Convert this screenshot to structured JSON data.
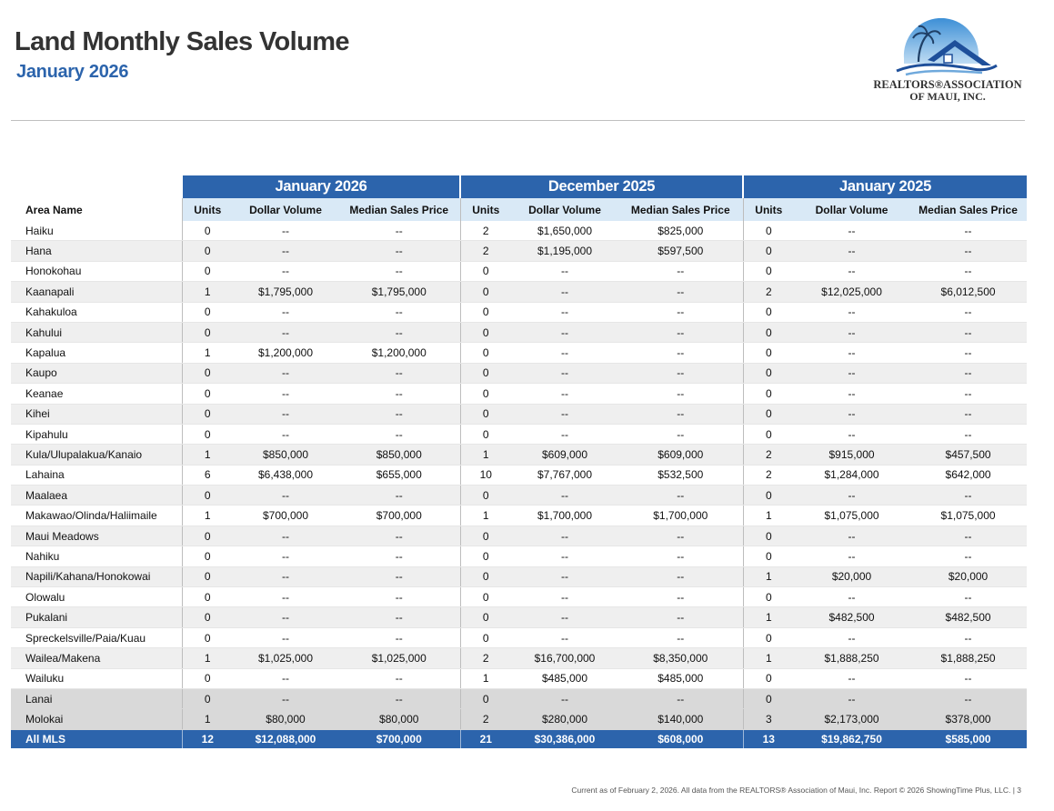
{
  "header": {
    "title": "Land Monthly Sales Volume",
    "subtitle": "January 2026"
  },
  "logo": {
    "line1": "REALTORS®ASSOCIATION",
    "line2": "OF MAUI, INC.",
    "colors": {
      "sky": "#2e79c4",
      "roof": "#1e4f9a",
      "palm": "#1f3f66"
    }
  },
  "table": {
    "periods": [
      "January 2026",
      "December 2025",
      "January 2025"
    ],
    "area_header": "Area Name",
    "column_headers": [
      "Units",
      "Dollar Volume",
      "Median Sales Price"
    ],
    "rows": [
      {
        "area": "Haiku",
        "v": [
          "0",
          "--",
          "--",
          "2",
          "$1,650,000",
          "$825,000",
          "0",
          "--",
          "--"
        ]
      },
      {
        "area": "Hana",
        "v": [
          "0",
          "--",
          "--",
          "2",
          "$1,195,000",
          "$597,500",
          "0",
          "--",
          "--"
        ]
      },
      {
        "area": "Honokohau",
        "v": [
          "0",
          "--",
          "--",
          "0",
          "--",
          "--",
          "0",
          "--",
          "--"
        ]
      },
      {
        "area": "Kaanapali",
        "v": [
          "1",
          "$1,795,000",
          "$1,795,000",
          "0",
          "--",
          "--",
          "2",
          "$12,025,000",
          "$6,012,500"
        ]
      },
      {
        "area": "Kahakuloa",
        "v": [
          "0",
          "--",
          "--",
          "0",
          "--",
          "--",
          "0",
          "--",
          "--"
        ]
      },
      {
        "area": "Kahului",
        "v": [
          "0",
          "--",
          "--",
          "0",
          "--",
          "--",
          "0",
          "--",
          "--"
        ]
      },
      {
        "area": "Kapalua",
        "v": [
          "1",
          "$1,200,000",
          "$1,200,000",
          "0",
          "--",
          "--",
          "0",
          "--",
          "--"
        ]
      },
      {
        "area": "Kaupo",
        "v": [
          "0",
          "--",
          "--",
          "0",
          "--",
          "--",
          "0",
          "--",
          "--"
        ]
      },
      {
        "area": "Keanae",
        "v": [
          "0",
          "--",
          "--",
          "0",
          "--",
          "--",
          "0",
          "--",
          "--"
        ]
      },
      {
        "area": "Kihei",
        "v": [
          "0",
          "--",
          "--",
          "0",
          "--",
          "--",
          "0",
          "--",
          "--"
        ]
      },
      {
        "area": "Kipahulu",
        "v": [
          "0",
          "--",
          "--",
          "0",
          "--",
          "--",
          "0",
          "--",
          "--"
        ]
      },
      {
        "area": "Kula/Ulupalakua/Kanaio",
        "v": [
          "1",
          "$850,000",
          "$850,000",
          "1",
          "$609,000",
          "$609,000",
          "2",
          "$915,000",
          "$457,500"
        ]
      },
      {
        "area": "Lahaina",
        "v": [
          "6",
          "$6,438,000",
          "$655,000",
          "10",
          "$7,767,000",
          "$532,500",
          "2",
          "$1,284,000",
          "$642,000"
        ]
      },
      {
        "area": "Maalaea",
        "v": [
          "0",
          "--",
          "--",
          "0",
          "--",
          "--",
          "0",
          "--",
          "--"
        ]
      },
      {
        "area": "Makawao/Olinda/Haliimaile",
        "v": [
          "1",
          "$700,000",
          "$700,000",
          "1",
          "$1,700,000",
          "$1,700,000",
          "1",
          "$1,075,000",
          "$1,075,000"
        ]
      },
      {
        "area": "Maui Meadows",
        "v": [
          "0",
          "--",
          "--",
          "0",
          "--",
          "--",
          "0",
          "--",
          "--"
        ]
      },
      {
        "area": "Nahiku",
        "v": [
          "0",
          "--",
          "--",
          "0",
          "--",
          "--",
          "0",
          "--",
          "--"
        ]
      },
      {
        "area": "Napili/Kahana/Honokowai",
        "v": [
          "0",
          "--",
          "--",
          "0",
          "--",
          "--",
          "1",
          "$20,000",
          "$20,000"
        ]
      },
      {
        "area": "Olowalu",
        "v": [
          "0",
          "--",
          "--",
          "0",
          "--",
          "--",
          "0",
          "--",
          "--"
        ]
      },
      {
        "area": "Pukalani",
        "v": [
          "0",
          "--",
          "--",
          "0",
          "--",
          "--",
          "1",
          "$482,500",
          "$482,500"
        ]
      },
      {
        "area": "Spreckelsville/Paia/Kuau",
        "v": [
          "0",
          "--",
          "--",
          "0",
          "--",
          "--",
          "0",
          "--",
          "--"
        ]
      },
      {
        "area": "Wailea/Makena",
        "v": [
          "1",
          "$1,025,000",
          "$1,025,000",
          "2",
          "$16,700,000",
          "$8,350,000",
          "1",
          "$1,888,250",
          "$1,888,250"
        ]
      },
      {
        "area": "Wailuku",
        "v": [
          "0",
          "--",
          "--",
          "1",
          "$485,000",
          "$485,000",
          "0",
          "--",
          "--"
        ]
      },
      {
        "area": "Lanai",
        "island": true,
        "v": [
          "0",
          "--",
          "--",
          "0",
          "--",
          "--",
          "0",
          "--",
          "--"
        ]
      },
      {
        "area": "Molokai",
        "island": true,
        "v": [
          "1",
          "$80,000",
          "$80,000",
          "2",
          "$280,000",
          "$140,000",
          "3",
          "$2,173,000",
          "$378,000"
        ]
      }
    ],
    "total": {
      "area": "All MLS",
      "v": [
        "12",
        "$12,088,000",
        "$700,000",
        "21",
        "$30,386,000",
        "$608,000",
        "13",
        "$19,862,750",
        "$585,000"
      ]
    }
  },
  "footer": "Current as of February 2, 2026. All data from the REALTORS® Association of Maui, Inc. Report © 2026 ShowingTime Plus, LLC.  |  3"
}
